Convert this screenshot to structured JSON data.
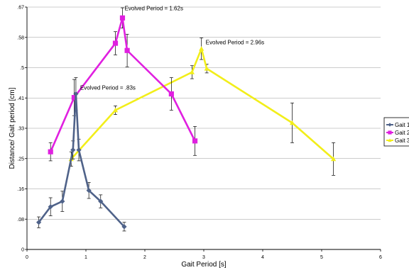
{
  "chart_data": {
    "type": "line",
    "title": "",
    "xlabel": "Gait Period [s]",
    "ylabel": "Distance/ Gait period [cm]",
    "xlim": [
      0,
      6
    ],
    "ylim": [
      0,
      0.67
    ],
    "x_ticks": [
      "0",
      "1",
      "2",
      "3",
      "4",
      "5",
      "6"
    ],
    "y_ticks": [
      "0",
      ".08",
      ".16",
      ".25",
      ".33",
      ".41",
      ".5",
      ".58",
      ".67"
    ],
    "grid": true,
    "legend_position": "right",
    "series": [
      {
        "name": "Gait 1",
        "color": "#4F6289",
        "marker": "diamond",
        "points": [
          {
            "x": 0.2,
            "y": 0.075,
            "err": 0.015
          },
          {
            "x": 0.4,
            "y": 0.118,
            "err": 0.025
          },
          {
            "x": 0.6,
            "y": 0.133,
            "err": 0.028
          },
          {
            "x": 0.78,
            "y": 0.275,
            "err": 0.025
          },
          {
            "x": 0.83,
            "y": 0.43,
            "err": 0.045
          },
          {
            "x": 0.88,
            "y": 0.275,
            "err": 0.03
          },
          {
            "x": 1.05,
            "y": 0.163,
            "err": 0.022
          },
          {
            "x": 1.25,
            "y": 0.133,
            "err": 0.018
          },
          {
            "x": 1.65,
            "y": 0.063,
            "err": 0.012
          }
        ]
      },
      {
        "name": "Gait 2",
        "color": "#E020E0",
        "marker": "square",
        "points": [
          {
            "x": 0.4,
            "y": 0.27,
            "err": 0.025
          },
          {
            "x": 0.8,
            "y": 0.42,
            "err": 0.05
          },
          {
            "x": 1.5,
            "y": 0.57,
            "err": 0.032
          },
          {
            "x": 1.62,
            "y": 0.64,
            "err": 0.028
          },
          {
            "x": 1.7,
            "y": 0.55,
            "err": 0.045
          },
          {
            "x": 2.45,
            "y": 0.43,
            "err": 0.045
          },
          {
            "x": 2.85,
            "y": 0.3,
            "err": 0.04
          }
        ]
      },
      {
        "name": "Gait 3",
        "color": "#F2EE1A",
        "marker": "triangle",
        "points": [
          {
            "x": 0.75,
            "y": 0.25,
            "err": 0.02
          },
          {
            "x": 1.5,
            "y": 0.385,
            "err": 0.012
          },
          {
            "x": 2.8,
            "y": 0.49,
            "err": 0.018
          },
          {
            "x": 2.96,
            "y": 0.555,
            "err": 0.03
          },
          {
            "x": 3.05,
            "y": 0.5,
            "err": 0.012
          },
          {
            "x": 4.5,
            "y": 0.35,
            "err": 0.055
          },
          {
            "x": 5.2,
            "y": 0.25,
            "err": 0.045
          }
        ]
      }
    ],
    "annotations": [
      {
        "text": "Evolved Period = 1.62s",
        "x": 1.62,
        "y": 0.64
      },
      {
        "text": "Evolved Period = 2.96s",
        "x": 2.96,
        "y": 0.555
      },
      {
        "text": "Evolved Period = .83s",
        "x": 0.83,
        "y": 0.43
      }
    ]
  }
}
